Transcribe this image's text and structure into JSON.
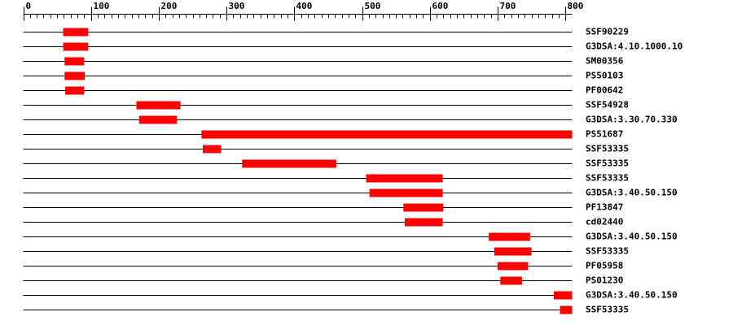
{
  "chart_data": {
    "type": "range",
    "color": "#ff0000",
    "xlim": [
      0,
      810
    ],
    "xticks": [
      0,
      100,
      200,
      300,
      400,
      500,
      600,
      700,
      800
    ],
    "xminorticks": [
      10,
      20,
      30,
      40,
      50,
      60,
      70,
      80,
      90,
      110,
      120,
      130,
      140,
      150,
      160,
      170,
      180,
      190,
      210,
      220,
      230,
      240,
      250,
      260,
      270,
      280,
      290,
      310,
      320,
      330,
      340,
      350,
      360,
      370,
      380,
      390,
      410,
      420,
      430,
      440,
      450,
      460,
      470,
      480,
      490,
      510,
      520,
      530,
      540,
      550,
      560,
      570,
      580,
      590,
      610,
      620,
      630,
      640,
      650,
      660,
      670,
      680,
      690,
      710,
      720,
      730,
      740,
      750,
      760,
      770,
      780,
      790
    ],
    "rows": [
      {
        "label": "SSF90229",
        "start": 59,
        "end": 96
      },
      {
        "label": "G3DSA:4.10.1000.10",
        "start": 59,
        "end": 96
      },
      {
        "label": "SM00356",
        "start": 61,
        "end": 90
      },
      {
        "label": "PS50103",
        "start": 61,
        "end": 91
      },
      {
        "label": "PF00642",
        "start": 62,
        "end": 90
      },
      {
        "label": "SSF54928",
        "start": 167,
        "end": 232
      },
      {
        "label": "G3DSA:3.30.70.330",
        "start": 171,
        "end": 227
      },
      {
        "label": "PS51687",
        "start": 263,
        "end": 810
      },
      {
        "label": "SSF53335",
        "start": 265,
        "end": 292
      },
      {
        "label": "SSF53335",
        "start": 323,
        "end": 462
      },
      {
        "label": "SSF53335",
        "start": 506,
        "end": 619
      },
      {
        "label": "G3DSA:3.40.50.150",
        "start": 511,
        "end": 619
      },
      {
        "label": "PF13847",
        "start": 561,
        "end": 620
      },
      {
        "label": "cd02440",
        "start": 563,
        "end": 619
      },
      {
        "label": "G3DSA:3.40.50.150",
        "start": 687,
        "end": 748
      },
      {
        "label": "SSF53335",
        "start": 695,
        "end": 750
      },
      {
        "label": "PF05958",
        "start": 700,
        "end": 745
      },
      {
        "label": "PS01230",
        "start": 704,
        "end": 736
      },
      {
        "label": "G3DSA:3.40.50.150",
        "start": 783,
        "end": 810
      },
      {
        "label": "SSF53335",
        "start": 792,
        "end": 810
      }
    ]
  }
}
